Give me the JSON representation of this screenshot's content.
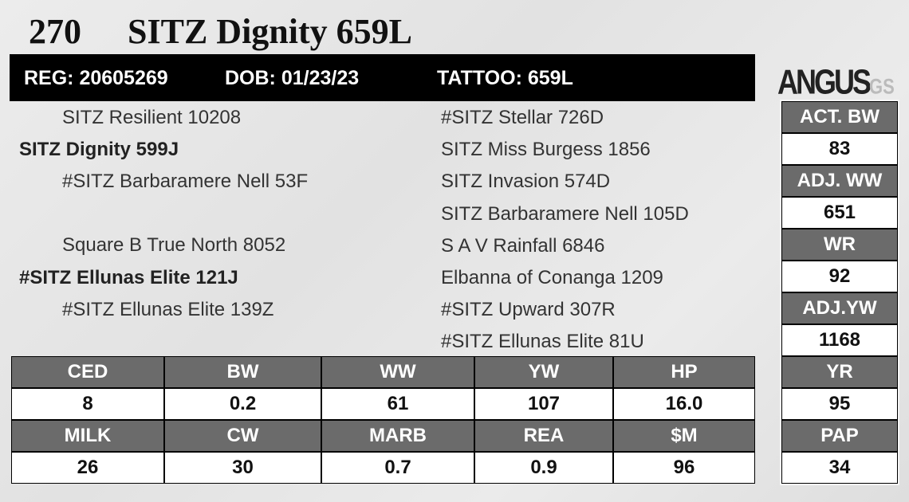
{
  "header": {
    "lot": "270",
    "name": "SITZ Dignity 659L"
  },
  "info_bar": [
    "REG: 20605269",
    "DOB: 01/23/23",
    "TATTOO: 659L"
  ],
  "logo": {
    "name": "ANGUS",
    "suffix": "GS"
  },
  "pedigree": {
    "sire": {
      "name": "SITZ Dignity 599J",
      "sire": "SITZ Resilient 10208",
      "dam": "#SITZ Barbaramere Nell 53F"
    },
    "dam": {
      "name": "#SITZ Ellunas Elite 121J",
      "sire": "Square B True North 8052",
      "dam": "#SITZ Ellunas Elite 139Z"
    },
    "great_grandparents": [
      "#SITZ Stellar 726D",
      "SITZ Miss Burgess 1856",
      "SITZ Invasion 574D",
      "SITZ Barbaramere Nell 105D",
      "S A V Rainfall 6846",
      "Elbanna of Conanga 1209",
      "#SITZ Upward 307R",
      "#SITZ Ellunas Elite 81U"
    ]
  },
  "epd_table": {
    "rows": [
      {
        "headers": [
          "CED",
          "BW",
          "WW",
          "YW",
          "HP"
        ],
        "values": [
          "8",
          "0.2",
          "61",
          "107",
          "16.0"
        ]
      },
      {
        "headers": [
          "MILK",
          "CW",
          "MARB",
          "REA",
          "$M"
        ],
        "values": [
          "26",
          "30",
          "0.7",
          "0.9",
          "96"
        ]
      }
    ]
  },
  "performance": [
    {
      "label": "ACT. BW",
      "value": "83"
    },
    {
      "label": "ADJ. WW",
      "value": "651"
    },
    {
      "label": "WR",
      "value": "92"
    },
    {
      "label": "ADJ.YW",
      "value": "1168"
    },
    {
      "label": "YR",
      "value": "95"
    },
    {
      "label": "PAP",
      "value": "34"
    }
  ]
}
